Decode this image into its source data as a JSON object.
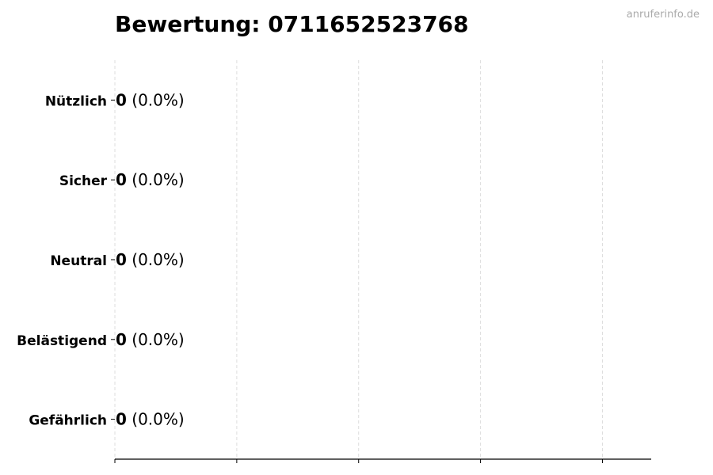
{
  "watermark": "anruferinfo.de",
  "chart_data": {
    "type": "bar",
    "orientation": "horizontal",
    "title": "Bewertung: 0711652523768",
    "categories": [
      "Nützlich",
      "Sicher",
      "Neutral",
      "Belästigend",
      "Gefährlich"
    ],
    "values": [
      0,
      0,
      0,
      0,
      0
    ],
    "labels": [
      {
        "value": "0",
        "percent": "(0.0%)"
      },
      {
        "value": "0",
        "percent": "(0.0%)"
      },
      {
        "value": "0",
        "percent": "(0.0%)"
      },
      {
        "value": "0",
        "percent": "(0.0%)"
      },
      {
        "value": "0",
        "percent": "(0.0%)"
      }
    ],
    "xlabel": "",
    "ylabel": "",
    "xlim": [
      0,
      4.4
    ],
    "xticks": [
      0,
      1,
      2,
      3,
      4
    ],
    "xtick_labels_shown": false,
    "grid": "x, dashed",
    "colors": {
      "grid": "#dddddd",
      "axis": "#000000",
      "bar_edge": "#000000"
    }
  }
}
